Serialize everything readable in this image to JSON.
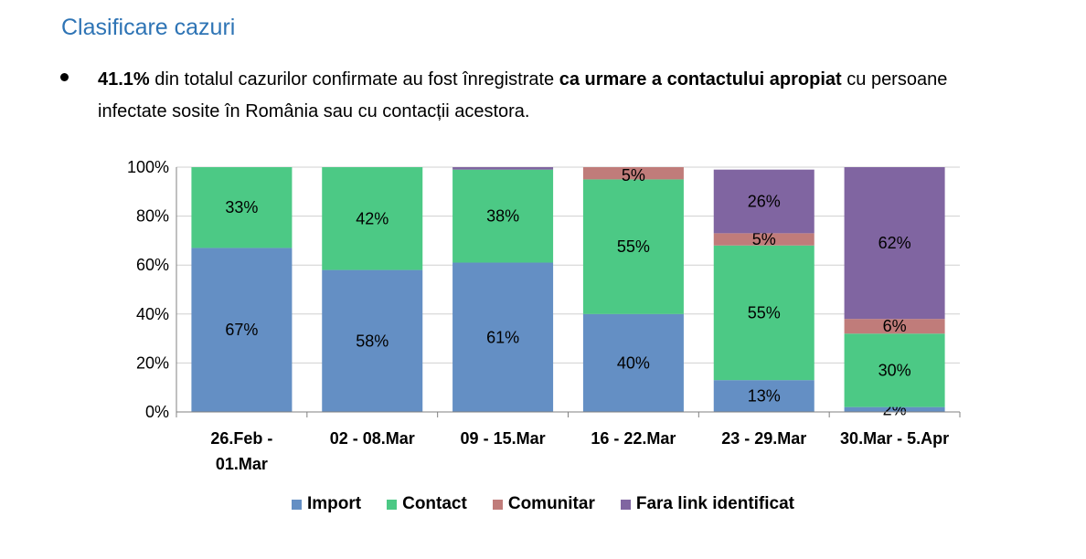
{
  "header": {
    "title": "Clasificare cazuri"
  },
  "bullet": {
    "part1": "41.1%",
    "part2": " din totalul cazurilor confirmate au fost înregistrate ",
    "part3": "ca urmare a contactului apropiat",
    "part4": " cu persoane infectate sosite în România sau cu contacții acestora."
  },
  "colors": {
    "import": "#648fc4",
    "contact": "#4cc985",
    "comunitar": "#c07c7a",
    "fara_link": "#8065a1",
    "grid": "#d0d0d0",
    "axis": "#808080"
  },
  "chart_data": {
    "type": "bar",
    "stacked": true,
    "ylim": [
      0,
      100
    ],
    "yticks": [
      "0%",
      "20%",
      "40%",
      "60%",
      "80%",
      "100%"
    ],
    "categories": [
      [
        "26.Feb -",
        "01.Mar"
      ],
      [
        "02 - 08.Mar"
      ],
      [
        "09 - 15.Mar"
      ],
      [
        "16 - 22.Mar"
      ],
      [
        "23 - 29.Mar"
      ],
      [
        "30.Mar - 5.Apr"
      ]
    ],
    "series": [
      {
        "key": "import",
        "name": "Import",
        "values": [
          67,
          58,
          61,
          40,
          13,
          2
        ],
        "labels": [
          "67%",
          "58%",
          "61%",
          "40%",
          "13%",
          "2%"
        ]
      },
      {
        "key": "contact",
        "name": "Contact",
        "values": [
          33,
          42,
          38,
          55,
          55,
          30
        ],
        "labels": [
          "33%",
          "42%",
          "38%",
          "55%",
          "55%",
          "30%"
        ]
      },
      {
        "key": "comunitar",
        "name": "Comunitar",
        "values": [
          0,
          0,
          0,
          5,
          5,
          6
        ],
        "labels": [
          "",
          "",
          "",
          "5%",
          "5%",
          "6%"
        ]
      },
      {
        "key": "fara_link",
        "name": "Fara link identificat",
        "values": [
          0,
          0,
          1,
          0,
          26,
          62
        ],
        "labels": [
          "",
          "",
          "",
          "",
          "26%",
          "62%"
        ]
      }
    ],
    "legend_position": "bottom"
  }
}
